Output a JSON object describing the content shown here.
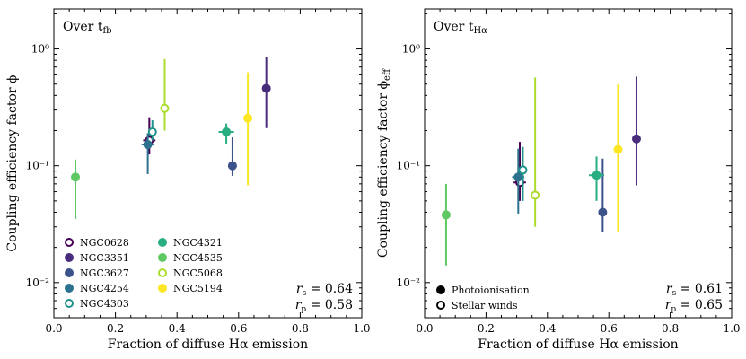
{
  "chart_data": [
    {
      "type": "scatter",
      "panel_label": "Over t",
      "panel_label_sub": "fb",
      "xlabel": "Fraction of diffuse Hα emission",
      "ylabel": "Coupling efficiency factor ϕ",
      "xlim": [
        0.0,
        1.0
      ],
      "ylim": [
        0.005,
        2.2
      ],
      "yscale": "log",
      "xticks": [
        0.0,
        0.2,
        0.4,
        0.6,
        0.8,
        1.0
      ],
      "xtick_labels": [
        "0.0",
        "0.2",
        "0.4",
        "0.6",
        "0.8",
        "1.0"
      ],
      "yticks": [
        0.01,
        0.1,
        1
      ],
      "ytick_labels": [
        "10⁻²",
        "10⁻¹",
        "10⁰"
      ],
      "stats": [
        "r_s = 0.64",
        "r_p = 0.58"
      ],
      "legend_placement": "lower-left",
      "series": [
        {
          "name": "NGC0628",
          "color": "#440154",
          "marker": "circle",
          "fill": "open",
          "x": 0.31,
          "y": 0.165,
          "y_err": [
            0.125,
            0.26
          ],
          "x_err": [
            0.29,
            0.33
          ]
        },
        {
          "name": "NGC3351",
          "color": "#472d7b",
          "marker": "circle",
          "fill": "filled",
          "x": 0.69,
          "y": 0.46,
          "y_err": [
            0.21,
            0.86
          ]
        },
        {
          "name": "NGC3627",
          "color": "#3b528b",
          "marker": "circle",
          "fill": "filled",
          "x": 0.58,
          "y": 0.1,
          "y_err": [
            0.082,
            0.175
          ]
        },
        {
          "name": "NGC4254",
          "color": "#2c728e",
          "marker": "circle",
          "fill": "filled",
          "x": 0.305,
          "y": 0.152,
          "y_err": [
            0.085,
            0.19
          ],
          "x_err": [
            0.285,
            0.325
          ]
        },
        {
          "name": "NGC4303",
          "color": "#21918c",
          "marker": "circle",
          "fill": "open",
          "x": 0.32,
          "y": 0.195,
          "y_err": [
            0.165,
            0.245
          ]
        },
        {
          "name": "NGC4321",
          "color": "#28ae80",
          "marker": "circle",
          "fill": "filled",
          "x": 0.56,
          "y": 0.195,
          "y_err": [
            0.155,
            0.23
          ],
          "x_err": [
            0.535,
            0.585
          ]
        },
        {
          "name": "NGC4535",
          "color": "#5ec962",
          "marker": "circle",
          "fill": "filled",
          "x": 0.07,
          "y": 0.08,
          "y_err": [
            0.035,
            0.113
          ]
        },
        {
          "name": "NGC5068",
          "color": "#addc30",
          "marker": "circle",
          "fill": "open",
          "x": 0.36,
          "y": 0.31,
          "y_err": [
            0.2,
            0.82
          ]
        },
        {
          "name": "NGC5194",
          "color": "#fde725",
          "marker": "circle",
          "fill": "filled",
          "x": 0.63,
          "y": 0.255,
          "y_err": [
            0.068,
            0.63
          ]
        }
      ]
    },
    {
      "type": "scatter",
      "panel_label": "Over t",
      "panel_label_sub": "Hα",
      "xlabel": "Fraction of diffuse Hα emission",
      "ylabel": "Coupling efficiency factor ϕ",
      "ylabel_sub": "eff",
      "xlim": [
        0.0,
        1.0
      ],
      "ylim": [
        0.005,
        2.2
      ],
      "yscale": "log",
      "xticks": [
        0.0,
        0.2,
        0.4,
        0.6,
        0.8,
        1.0
      ],
      "xtick_labels": [
        "0.0",
        "0.2",
        "0.4",
        "0.6",
        "0.8",
        "1.0"
      ],
      "yticks": [
        0.01,
        0.1,
        1
      ],
      "ytick_labels": [
        "10⁻²",
        "10⁻¹",
        "10⁰"
      ],
      "stats": [
        "r_s = 0.61",
        "r_p = 0.65"
      ],
      "legend_placement": "lower-left",
      "legend": [
        {
          "name": "Photoionisation",
          "marker": "circle",
          "fill": "filled"
        },
        {
          "name": "Stellar winds",
          "marker": "circle",
          "fill": "open"
        }
      ],
      "series": [
        {
          "color": "#440154",
          "marker": "circle",
          "fill": "open",
          "x": 0.31,
          "y": 0.072,
          "y_err": [
            0.05,
            0.16
          ],
          "x_err": [
            0.29,
            0.33
          ]
        },
        {
          "color": "#472d7b",
          "marker": "circle",
          "fill": "filled",
          "x": 0.69,
          "y": 0.17,
          "y_err": [
            0.068,
            0.58
          ]
        },
        {
          "color": "#3b528b",
          "marker": "circle",
          "fill": "filled",
          "x": 0.58,
          "y": 0.04,
          "y_err": [
            0.027,
            0.115
          ]
        },
        {
          "color": "#2c728e",
          "marker": "circle",
          "fill": "filled",
          "x": 0.305,
          "y": 0.08,
          "y_err": [
            0.039,
            0.14
          ],
          "x_err": [
            0.285,
            0.325
          ]
        },
        {
          "color": "#21918c",
          "marker": "circle",
          "fill": "open",
          "x": 0.32,
          "y": 0.092,
          "y_err": [
            0.05,
            0.145
          ]
        },
        {
          "color": "#28ae80",
          "marker": "circle",
          "fill": "filled",
          "x": 0.56,
          "y": 0.083,
          "y_err": [
            0.05,
            0.12
          ],
          "x_err": [
            0.535,
            0.585
          ]
        },
        {
          "color": "#5ec962",
          "marker": "circle",
          "fill": "filled",
          "x": 0.07,
          "y": 0.038,
          "y_err": [
            0.014,
            0.07
          ]
        },
        {
          "color": "#addc30",
          "marker": "circle",
          "fill": "open",
          "x": 0.36,
          "y": 0.056,
          "y_err": [
            0.03,
            0.57
          ]
        },
        {
          "color": "#fde725",
          "marker": "circle",
          "fill": "filled",
          "x": 0.63,
          "y": 0.138,
          "y_err": [
            0.027,
            0.5
          ]
        }
      ]
    }
  ]
}
